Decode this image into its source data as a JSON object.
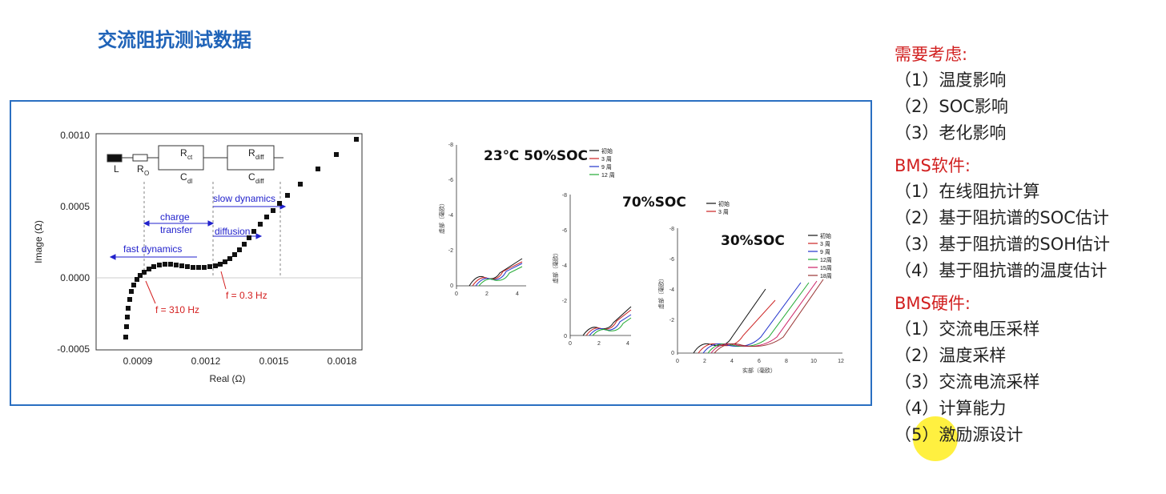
{
  "title": "交流阻抗测试数据",
  "main_chart": {
    "ylabel": "Image (Ω)",
    "xlabel": "Real (Ω)",
    "y_ticks": [
      "0.0010",
      "0.0005",
      "0.0000",
      "-0.0005"
    ],
    "x_ticks": [
      "0.0009",
      "0.0012",
      "0.0015",
      "0.0018"
    ],
    "circuit": {
      "L": "L",
      "R0": "R",
      "R0_sub": "O",
      "Rct": "R",
      "Rct_sub": "ct",
      "Cdl": "C",
      "Cdl_sub": "dl",
      "Rdiff": "R",
      "Rdiff_sub": "diff",
      "Cdiff": "C",
      "Cdiff_sub": "diff"
    },
    "annotations": {
      "charge": "charge",
      "transfer": "transfer",
      "slow": "slow dynamics",
      "diffusion": "diffusion",
      "fast": "fast dynamics",
      "f310": "f = 310 Hz",
      "f03": "f = 0.3 Hz"
    }
  },
  "sub_charts": {
    "c23": {
      "label": "23℃  50%SOC",
      "legend": [
        "初始",
        "3 周",
        "9 周",
        "12 周"
      ],
      "ylabel": "虚部（毫欧）",
      "y_ticks": [
        "-8",
        "-6",
        "-4",
        "-2",
        "0"
      ],
      "x_ticks": [
        "0",
        "2",
        "4"
      ]
    },
    "c70": {
      "label": "70%SOC",
      "legend": [
        "初始",
        "3 周"
      ],
      "ylabel": "虚部（毫欧）",
      "y_ticks": [
        "-8",
        "-6",
        "-4",
        "-2",
        "0"
      ],
      "x_ticks": [
        "0",
        "2",
        "4"
      ]
    },
    "c30": {
      "label": "30%SOC",
      "legend": [
        "初始",
        "3 周",
        "9 周",
        "12周",
        "15周",
        "18周"
      ],
      "ylabel": "虚部（毫欧）",
      "xlabel": "实部（毫欧）",
      "y_ticks": [
        "-8",
        "-6",
        "-4",
        "-2",
        "0"
      ],
      "x_ticks": [
        "0",
        "2",
        "4",
        "6",
        "8",
        "10",
        "12"
      ]
    }
  },
  "notes": {
    "considerations": {
      "heading": "需要考虑:",
      "items": [
        "（1）温度影响",
        "（2）SOC影响",
        "（3）老化影响"
      ]
    },
    "software": {
      "heading": "BMS软件:",
      "items": [
        "（1）在线阻抗计算",
        "（2）基于阻抗谱的SOC估计",
        "（3）基于阻抗谱的SOH估计",
        "（4）基于阻抗谱的温度估计"
      ]
    },
    "hardware": {
      "heading": "BMS硬件:",
      "items": [
        "（1）交流电压采样",
        "（2）温度采样",
        "（3）交流电流采样",
        "（4）计算能力",
        "（5）激励源设计"
      ]
    }
  },
  "colors": {
    "title": "#1f63b8",
    "frame": "#2a6fc1",
    "heading": "#d11f1f",
    "annotation": "#2222cc",
    "freq": "#d42020"
  }
}
